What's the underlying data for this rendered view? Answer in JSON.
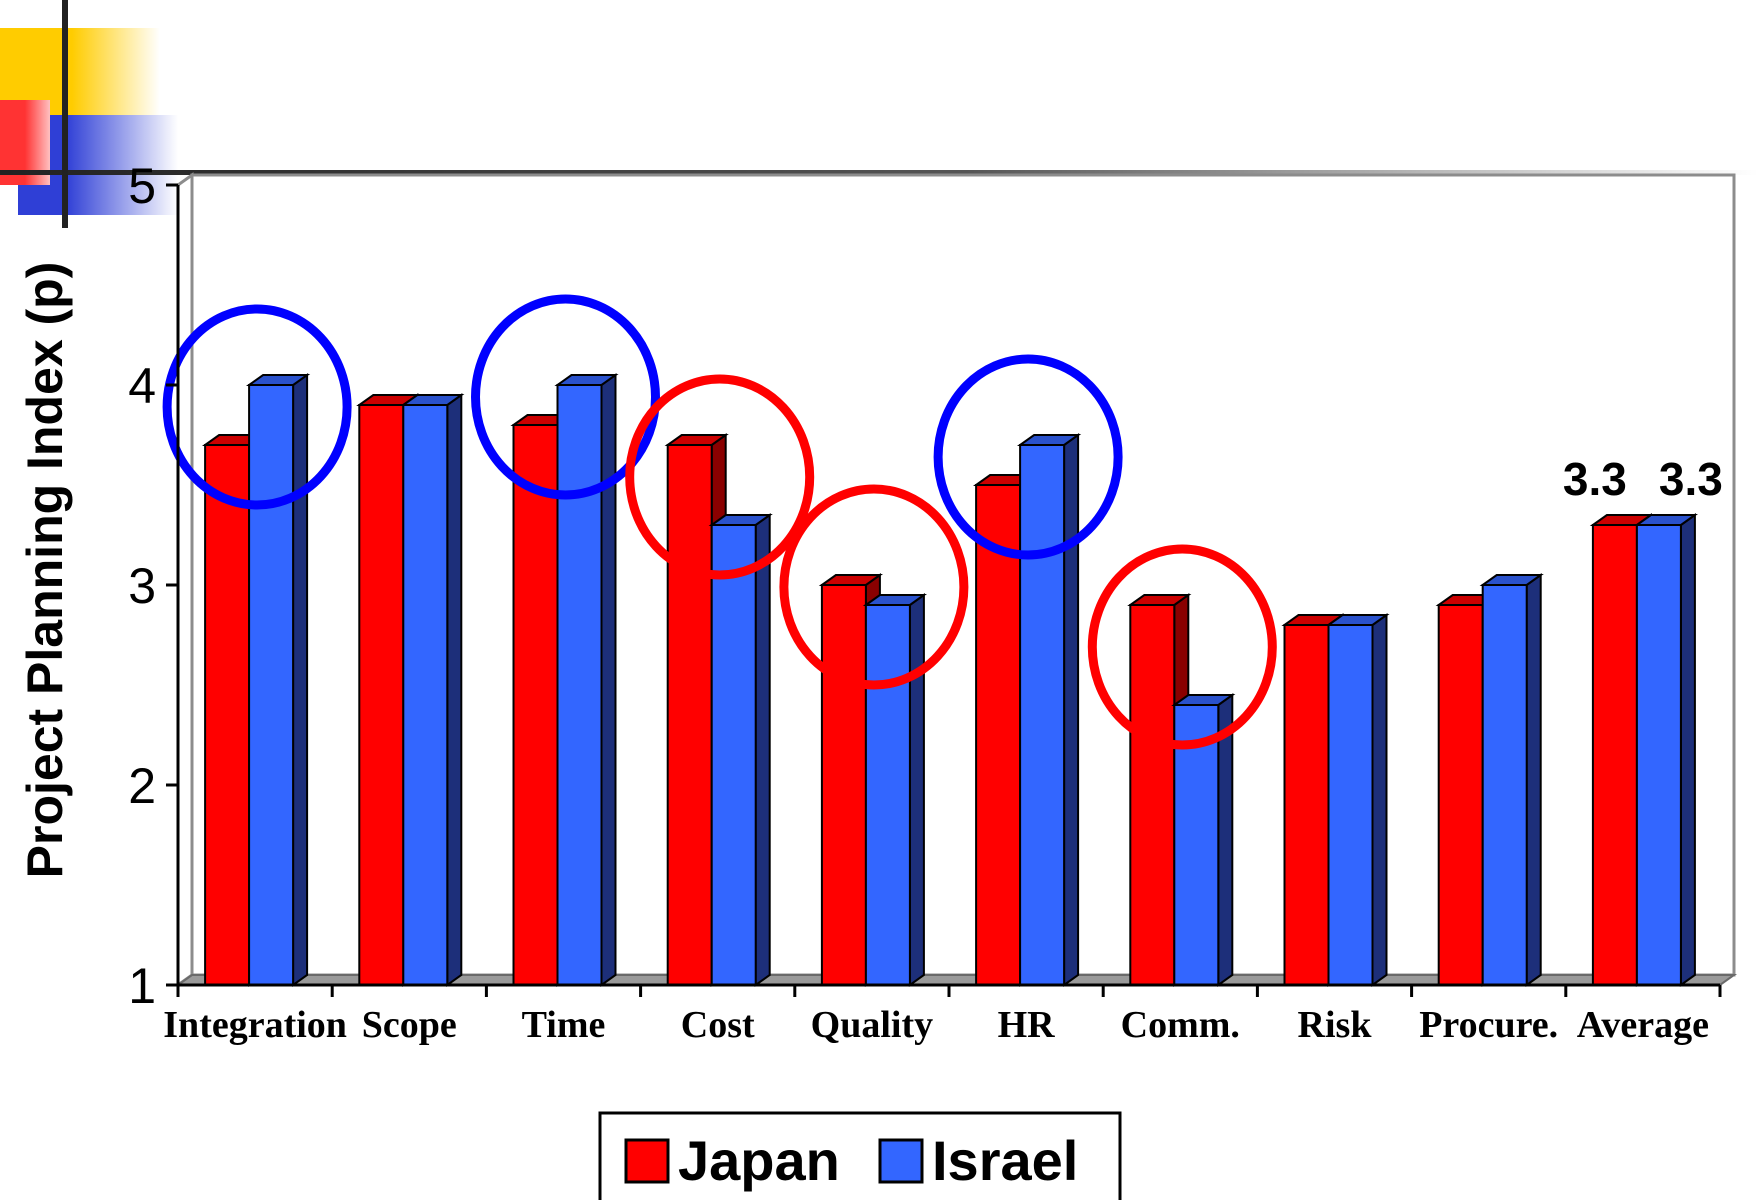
{
  "chart_data": {
    "type": "bar",
    "title": "",
    "ylabel": "Project Planning Index (p)",
    "xlabel": "",
    "ylim": [
      1,
      5
    ],
    "yticks": [
      1,
      2,
      3,
      4,
      5
    ],
    "grid": true,
    "categories": [
      "Integration",
      "Scope",
      "Time",
      "Cost",
      "Quality",
      "HR",
      "Comm.",
      "Risk",
      "Procure.",
      "Average"
    ],
    "series": [
      {
        "name": "Japan",
        "color": "#ff0000",
        "values": [
          3.7,
          3.9,
          3.8,
          3.7,
          3.0,
          3.5,
          2.9,
          2.8,
          2.9,
          3.3
        ]
      },
      {
        "name": "Israel",
        "color": "#3366ff",
        "values": [
          4.0,
          3.9,
          4.0,
          3.3,
          2.9,
          3.7,
          2.4,
          2.8,
          3.0,
          3.3
        ]
      }
    ],
    "data_labels": [
      {
        "category": "Average",
        "series": "Japan",
        "text": "3.3"
      },
      {
        "category": "Average",
        "series": "Israel",
        "text": "3.3"
      }
    ],
    "highlights": [
      {
        "category": "Integration",
        "color": "#0000ff"
      },
      {
        "category": "Time",
        "color": "#0000ff"
      },
      {
        "category": "Cost",
        "color": "#ff0000"
      },
      {
        "category": "Quality",
        "color": "#ff0000"
      },
      {
        "category": "HR",
        "color": "#0000ff"
      },
      {
        "category": "Comm.",
        "color": "#ff0000"
      }
    ],
    "legend": "bottom-center"
  }
}
